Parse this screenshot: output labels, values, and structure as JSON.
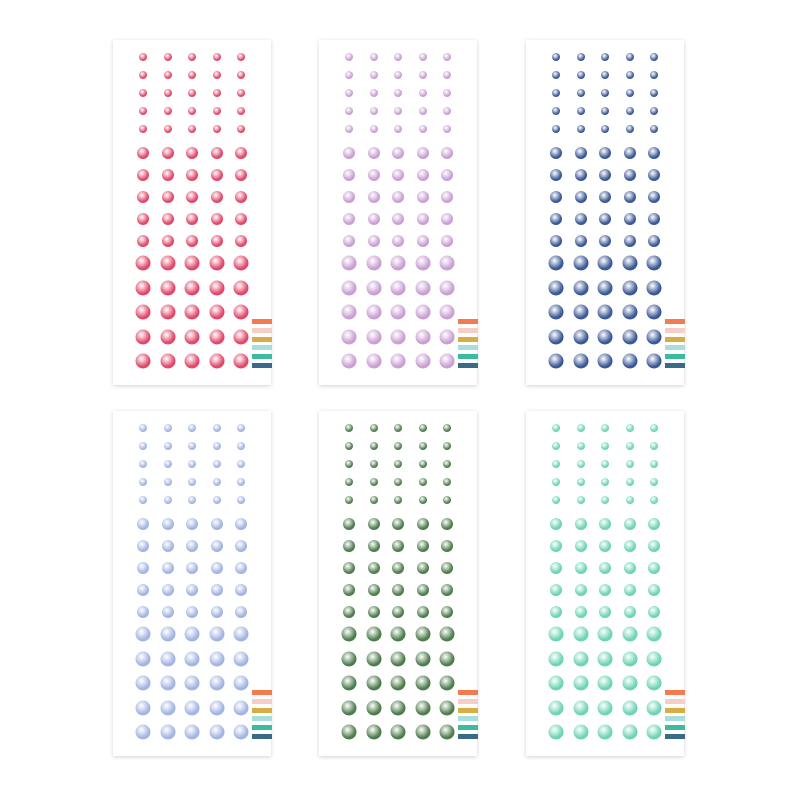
{
  "sheets": [
    {
      "name": "red",
      "color": "#e0486a"
    },
    {
      "name": "lilac",
      "color": "#c99fd3"
    },
    {
      "name": "navy",
      "color": "#3a5896"
    },
    {
      "name": "periwinkle",
      "color": "#a2b4e2"
    },
    {
      "name": "green",
      "color": "#4e7d4c"
    },
    {
      "name": "mint",
      "color": "#6cd4b4"
    }
  ],
  "palette_stripes": [
    "#f47a50",
    "#f5cfc6",
    "#d9ad45",
    "#a8dedb",
    "#3dbb9f",
    "#3a6a8a"
  ]
}
